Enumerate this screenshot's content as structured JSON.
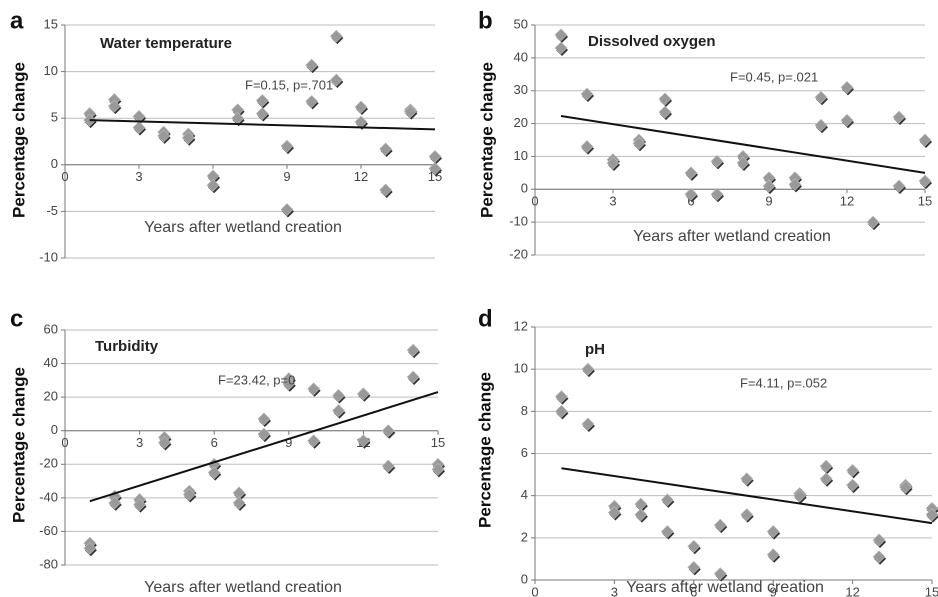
{
  "chart_data": [
    {
      "type": "scatter",
      "panel": "a",
      "title": "Water temperature",
      "annotation": "F=0.15, p=.701",
      "x_label": "Years after wetland creation",
      "y_label": "Percentage change",
      "x": [
        1,
        1,
        2,
        2,
        3,
        3,
        4,
        4,
        5,
        5,
        6,
        6,
        7,
        7,
        8,
        8,
        9,
        9,
        10,
        10,
        11,
        11,
        12,
        12,
        13,
        13,
        14,
        14,
        15,
        15
      ],
      "values": [
        5.5,
        4.8,
        7,
        6.3,
        5.2,
        4,
        3.5,
        3.1,
        3.3,
        2.9,
        -1.2,
        -2.2,
        5.9,
        5,
        6.9,
        5.5,
        2,
        -4.8,
        10.7,
        6.8,
        13.8,
        9.1,
        6.2,
        4.6,
        1.7,
        -2.7,
        5.9,
        5.7,
        0.9,
        -0.4
      ],
      "trendline": {
        "x": [
          1,
          15
        ],
        "values": [
          4.8,
          3.8
        ]
      },
      "xlim": [
        0,
        15
      ],
      "ylim": [
        -10,
        15
      ],
      "xticks": [
        0,
        3,
        6,
        9,
        12,
        15
      ],
      "yticks": [
        -10,
        -5,
        0,
        5,
        10,
        15
      ],
      "grid": true,
      "color": "#999999"
    },
    {
      "type": "scatter",
      "panel": "b",
      "title": "Dissolved oxygen",
      "annotation": "F=0.45, p=.021",
      "x_label": "Years after wetland creation",
      "y_label": "Percentage change",
      "x": [
        1,
        1,
        2,
        2,
        3,
        3,
        4,
        4,
        5,
        5,
        6,
        6,
        7,
        7,
        8,
        8,
        9,
        9,
        10,
        10,
        11,
        11,
        12,
        12,
        13,
        14,
        14,
        15,
        15
      ],
      "values": [
        47,
        43,
        29,
        13,
        9,
        8,
        15,
        14,
        27.5,
        23.5,
        5,
        -1.5,
        8.5,
        -1.5,
        10,
        8,
        3.5,
        1,
        3.5,
        1.5,
        28,
        19.5,
        31,
        21,
        -10,
        22,
        1,
        15,
        2.5
      ],
      "trendline": {
        "x": [
          1,
          15
        ],
        "values": [
          22.3,
          5
        ]
      },
      "xlim": [
        0,
        15
      ],
      "ylim": [
        -20,
        50
      ],
      "xticks": [
        0,
        3,
        6,
        9,
        12,
        15
      ],
      "yticks": [
        -20,
        -10,
        0,
        10,
        20,
        30,
        40,
        50
      ],
      "grid": true,
      "color": "#999999"
    },
    {
      "type": "scatter",
      "panel": "c",
      "title": "Turbidity",
      "annotation": "F=23.42, p=0",
      "x_label": "Years after wetland creation",
      "y_label": "Percentage change",
      "x": [
        1,
        1,
        2,
        2,
        3,
        3,
        4,
        4,
        5,
        5,
        6,
        6,
        7,
        7,
        8,
        8,
        9,
        9,
        10,
        10,
        11,
        11,
        12,
        12,
        13,
        13,
        14,
        14,
        15,
        15
      ],
      "values": [
        -67,
        -70,
        -39,
        -43,
        -41,
        -44,
        -4,
        -7,
        -36,
        -38,
        -20,
        -25,
        -37,
        -43,
        7,
        -2,
        31,
        28,
        25,
        -6,
        21,
        12,
        22,
        -6,
        0,
        -21,
        48,
        32,
        -20,
        -23
      ],
      "trendline": {
        "x": [
          1,
          15
        ],
        "values": [
          -42,
          23
        ]
      },
      "xlim": [
        0,
        15
      ],
      "ylim": [
        -80,
        60
      ],
      "xticks": [
        0,
        3,
        6,
        9,
        12,
        15
      ],
      "yticks": [
        -80,
        -60,
        -40,
        -20,
        0,
        20,
        40,
        60
      ],
      "grid": true,
      "color": "#999999"
    },
    {
      "type": "scatter",
      "panel": "d",
      "title": "pH",
      "annotation": "F=4.11, p=.052",
      "x_label": "Years after wetland creation",
      "y_label": "Percentage change",
      "x": [
        1,
        1,
        2,
        2,
        3,
        3,
        4,
        4,
        5,
        5,
        6,
        6,
        7,
        7,
        8,
        8,
        9,
        9,
        10,
        10,
        11,
        11,
        12,
        12,
        13,
        13,
        14,
        14,
        15,
        15
      ],
      "values": [
        8.7,
        8,
        10,
        7.4,
        3.5,
        3.2,
        3.6,
        3.1,
        3.8,
        2.3,
        1.6,
        0.6,
        2.6,
        0.3,
        4.8,
        3.1,
        2.3,
        1.2,
        4.1,
        4,
        5.4,
        4.8,
        5.2,
        4.5,
        1.9,
        1.1,
        4.5,
        4.4,
        3.4,
        3.1
      ],
      "trendline": {
        "x": [
          1,
          15
        ],
        "values": [
          5.3,
          2.7
        ]
      },
      "xlim": [
        0,
        15
      ],
      "ylim": [
        0,
        12
      ],
      "xticks": [
        0,
        3,
        6,
        9,
        12,
        15
      ],
      "yticks": [
        0,
        2,
        4,
        6,
        8,
        10,
        12
      ],
      "grid": true,
      "color": "#999999"
    }
  ]
}
